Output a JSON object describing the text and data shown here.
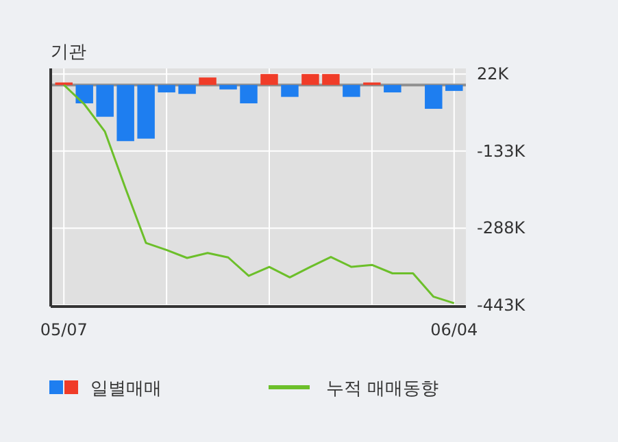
{
  "chart_data": {
    "type": "bar",
    "title": "기관",
    "categories": [
      "05/07",
      null,
      null,
      null,
      null,
      null,
      null,
      null,
      null,
      null,
      null,
      null,
      null,
      null,
      null,
      null,
      null,
      null,
      null,
      "06/04"
    ],
    "series": [
      {
        "name": "일별매매",
        "colors": [
          "#f03c28",
          "#1e7ef0",
          "#1e7ef0",
          "#1e7ef0",
          "#1e7ef0",
          "#1e7ef0",
          "#1e7ef0",
          "#f03c28",
          "#1e7ef0",
          "#1e7ef0",
          "#f03c28",
          "#1e7ef0",
          "#f03c28",
          "#f03c28",
          "#1e7ef0",
          "#f03c28",
          "#1e7ef0",
          "#1e7ef0",
          "#1e7ef0",
          "#1e7ef0"
        ],
        "color": "#1e7ef0",
        "values": [
          5,
          -37,
          -64,
          -113,
          -108,
          -15,
          -18,
          15,
          -9,
          -37,
          22,
          -24,
          22,
          22,
          -24,
          5,
          -15,
          0,
          -48,
          -12
        ]
      },
      {
        "name": "누적 매매동향",
        "type": "line",
        "color": "#6cbf2a",
        "values": [
          0,
          -39,
          -94,
          -208,
          -318,
          -332,
          -348,
          -338,
          -347,
          -384,
          -366,
          -387,
          -366,
          -346,
          -366,
          -362,
          -379,
          -379,
          -426,
          -439
        ]
      }
    ],
    "ylim": [
      -443,
      25
    ],
    "yticks": [
      {
        "value": 22,
        "label": "22K"
      },
      {
        "value": -133,
        "label": "-133K"
      },
      {
        "value": -288,
        "label": "-288K"
      },
      {
        "value": -443,
        "label": "-443K"
      }
    ],
    "grid": true,
    "legend": "bottom"
  }
}
